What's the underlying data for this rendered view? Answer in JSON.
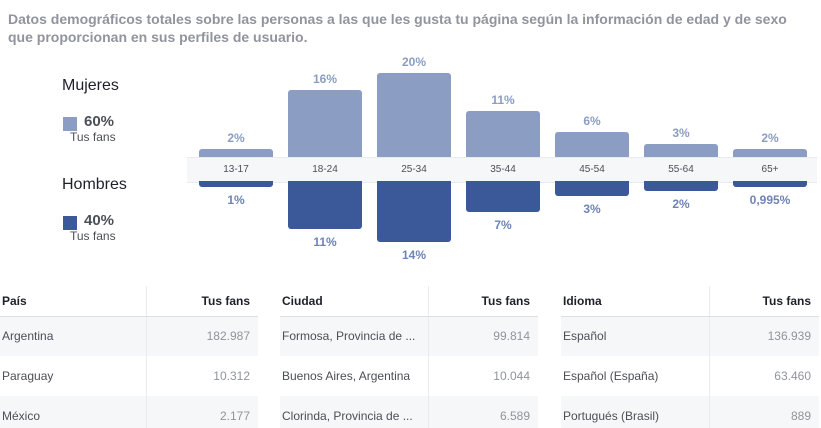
{
  "intro": {
    "line1": "Datos demográficos totales sobre las personas a las que les gusta tu página según la información de edad y de sexo",
    "line2": "que proporcionan en sus perfiles de usuario."
  },
  "legend": {
    "women": {
      "title": "Mujeres",
      "pct": "60%",
      "sub": "Tus fans",
      "color": "#8b9dc3"
    },
    "men": {
      "title": "Hombres",
      "pct": "40%",
      "sub": "Tus fans",
      "color": "#3b5998"
    }
  },
  "chart_data": {
    "type": "bar",
    "categories": [
      "13-17",
      "18-24",
      "25-34",
      "35-44",
      "45-54",
      "55-64",
      "65+"
    ],
    "series": [
      {
        "name": "Mujeres",
        "values": [
          2,
          16,
          20,
          11,
          6,
          3,
          2
        ],
        "labels": [
          "2%",
          "16%",
          "20%",
          "11%",
          "6%",
          "3%",
          "2%"
        ]
      },
      {
        "name": "Hombres",
        "values": [
          1,
          11,
          14,
          7,
          3,
          2,
          0.995
        ],
        "labels": [
          "1%",
          "11%",
          "14%",
          "7%",
          "3%",
          "2%",
          "0,995%"
        ]
      }
    ]
  },
  "tables": [
    {
      "header": [
        "País",
        "Tus fans"
      ],
      "rows": [
        [
          "Argentina",
          "182.987"
        ],
        [
          "Paraguay",
          "10.312"
        ],
        [
          "México",
          "2.177"
        ]
      ]
    },
    {
      "header": [
        "Ciudad",
        "Tus fans"
      ],
      "rows": [
        [
          "Formosa, Provincia de ...",
          "99.814"
        ],
        [
          "Buenos Aires, Argentina",
          "10.044"
        ],
        [
          "Clorinda, Provincia de ...",
          "6.589"
        ]
      ]
    },
    {
      "header": [
        "Idioma",
        "Tus fans"
      ],
      "rows": [
        [
          "Español",
          "136.939"
        ],
        [
          "Español (España)",
          "63.460"
        ],
        [
          "Portugués (Brasil)",
          "889"
        ]
      ]
    }
  ]
}
